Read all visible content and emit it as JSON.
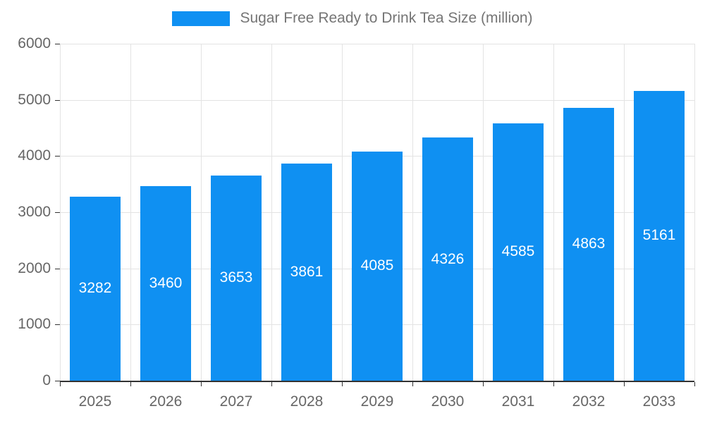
{
  "chart_data": {
    "type": "bar",
    "title": "Sugar Free Ready to Drink Tea Size (million)",
    "categories": [
      "2025",
      "2026",
      "2027",
      "2028",
      "2029",
      "2030",
      "2031",
      "2032",
      "2033"
    ],
    "values": [
      3282,
      3460,
      3653,
      3861,
      4085,
      4326,
      4585,
      4863,
      5161
    ],
    "xlabel": "",
    "ylabel": "",
    "ylim": [
      0,
      6000
    ],
    "yticks": [
      0,
      1000,
      2000,
      3000,
      4000,
      5000,
      6000
    ],
    "grid": "on",
    "legend_position": "top",
    "colors": {
      "bar": "#0f90f2",
      "bar_label_text": "#ffffff",
      "axis_text": "#666666",
      "title_text": "#757575",
      "gridline": "#e3e3e3",
      "axis_line": "#333333"
    }
  }
}
